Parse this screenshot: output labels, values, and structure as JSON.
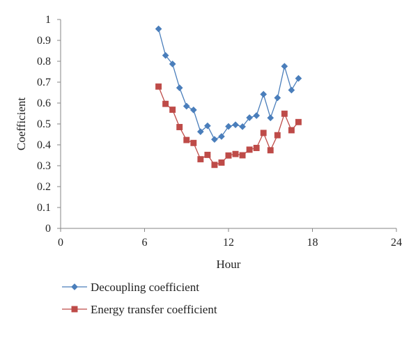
{
  "chart_data": {
    "type": "line",
    "xlabel": "Hour",
    "ylabel": "Coefficient",
    "xlim": [
      0,
      24
    ],
    "ylim": [
      0,
      1
    ],
    "xticks": [
      0,
      6,
      12,
      18,
      24
    ],
    "yticks": [
      0,
      0.1,
      0.2,
      0.3,
      0.4,
      0.5,
      0.6,
      0.7,
      0.8,
      0.9,
      1
    ],
    "ytick_labels": [
      "0",
      "0.1",
      "0.2",
      "0.3",
      "0.4",
      "0.5",
      "0.6",
      "0.7",
      "0.8",
      "0.9",
      "1"
    ],
    "grid": false,
    "legend_position": "bottom-left",
    "series": [
      {
        "name": "Decoupling coefficient",
        "color": "#4a7ebb",
        "marker": "diamond",
        "x": [
          7,
          7.5,
          8,
          8.5,
          9,
          9.5,
          10,
          10.5,
          11,
          11.5,
          12,
          12.5,
          13,
          13.5,
          14,
          14.5,
          15,
          15.5,
          16,
          16.5,
          17
        ],
        "y": [
          0.955,
          0.828,
          0.787,
          0.673,
          0.585,
          0.567,
          0.463,
          0.491,
          0.426,
          0.44,
          0.488,
          0.496,
          0.487,
          0.53,
          0.54,
          0.642,
          0.529,
          0.625,
          0.776,
          0.662,
          0.718
        ]
      },
      {
        "name": "Energy transfer coefficient",
        "color": "#be4b48",
        "marker": "square",
        "x": [
          7,
          7.5,
          8,
          8.5,
          9,
          9.5,
          10,
          10.5,
          11,
          11.5,
          12,
          12.5,
          13,
          13.5,
          14,
          14.5,
          15,
          15.5,
          16,
          16.5,
          17
        ],
        "y": [
          0.679,
          0.596,
          0.568,
          0.485,
          0.423,
          0.409,
          0.331,
          0.352,
          0.304,
          0.315,
          0.349,
          0.356,
          0.35,
          0.377,
          0.385,
          0.457,
          0.374,
          0.446,
          0.549,
          0.47,
          0.509
        ]
      }
    ]
  }
}
